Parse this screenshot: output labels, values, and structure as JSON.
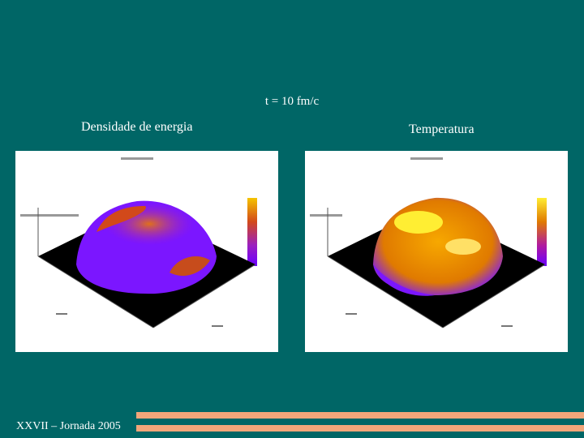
{
  "slide": {
    "title": "t = 10 fm/c",
    "footer": "XXVII – Jornada 2005"
  },
  "left_panel": {
    "label": "Densidade de energia",
    "colors": {
      "low": "#6a00ff",
      "mid": "#d2491a",
      "high": "#f5c400",
      "floor": "#000000"
    }
  },
  "right_panel": {
    "label": "Temperatura",
    "colors": {
      "low": "#6a00ff",
      "mid": "#e07a00",
      "high": "#ffee33",
      "floor": "#000000"
    }
  }
}
